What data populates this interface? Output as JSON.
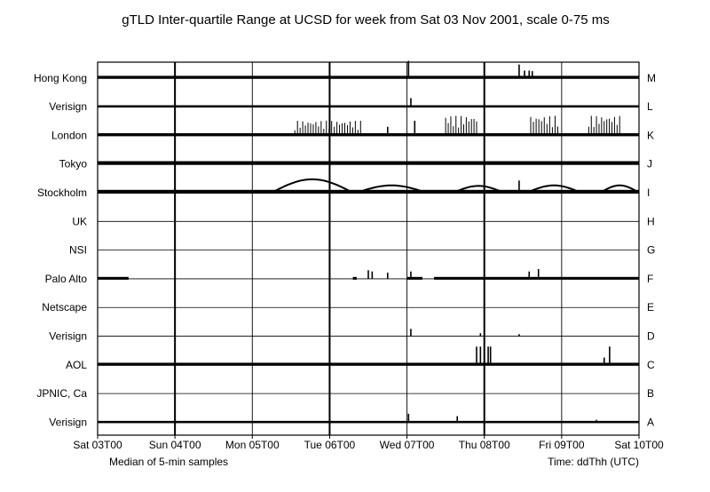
{
  "chart_data": {
    "type": "line",
    "title": "gTLD Inter-quartile Range at UCSD for week from Sat 03 Nov 2001, scale 0-75 ms",
    "xlabel": "Time: ddThh (UTC)",
    "footnote": "Median of 5-min samples",
    "x_ticks": [
      "Sat 03T00",
      "Sun 04T00",
      "Mon 05T00",
      "Tue 06T00",
      "Wed 07T00",
      "Thu 08T00",
      "Fri 09T00",
      "Sat 10T00"
    ],
    "x_range_days": [
      0,
      7
    ],
    "y_scale_ms": [
      0,
      75
    ],
    "series": [
      {
        "name": "Hong Kong",
        "letter": "M",
        "level": 0.05,
        "spikes": [
          [
            4.02,
            0.7
          ],
          [
            5.45,
            0.55
          ],
          [
            5.52,
            0.3
          ],
          [
            5.58,
            0.3
          ],
          [
            5.62,
            0.28
          ]
        ]
      },
      {
        "name": "Verisign",
        "letter": "L",
        "level": 0.02,
        "spikes": [
          [
            4.05,
            0.35
          ]
        ]
      },
      {
        "name": "London",
        "letter": "K",
        "level": 0.05,
        "bursts": [
          [
            2.55,
            3.4,
            0.6
          ],
          [
            4.5,
            4.9,
            0.8
          ],
          [
            5.6,
            5.95,
            0.8
          ],
          [
            6.35,
            6.75,
            0.8
          ]
        ],
        "spikes": [
          [
            4.1,
            0.6
          ],
          [
            3.75,
            0.35
          ]
        ]
      },
      {
        "name": "Tokyo",
        "letter": "J",
        "level": 0.08,
        "spikes": []
      },
      {
        "name": "Stockholm",
        "letter": "I",
        "level": 0.08,
        "humps": [
          [
            2.25,
            3.3,
            0.55
          ],
          [
            3.35,
            4.25,
            0.3
          ],
          [
            4.6,
            5.25,
            0.28
          ],
          [
            5.55,
            6.25,
            0.3
          ],
          [
            6.5,
            7.0,
            0.3
          ]
        ],
        "spikes": [
          [
            1.0,
            0.25
          ],
          [
            5.45,
            0.5
          ]
        ]
      },
      {
        "name": "UK",
        "letter": "H",
        "level": 0.0,
        "spikes": []
      },
      {
        "name": "NSI",
        "letter": "G",
        "level": 0.0,
        "spikes": []
      },
      {
        "name": "Palo Alto",
        "letter": "F",
        "level": 0.04,
        "segments": [
          [
            0.0,
            0.4
          ],
          [
            3.3,
            3.35
          ],
          [
            4.0,
            4.2
          ],
          [
            4.35,
            7.0
          ]
        ],
        "spikes": [
          [
            3.5,
            0.35
          ],
          [
            3.55,
            0.3
          ],
          [
            3.75,
            0.25
          ],
          [
            4.05,
            0.3
          ],
          [
            5.58,
            0.3
          ],
          [
            5.7,
            0.4
          ]
        ]
      },
      {
        "name": "Netscape",
        "letter": "E",
        "level": 0.0,
        "spikes": []
      },
      {
        "name": "Verisign",
        "letter": "D",
        "level": 0.0,
        "spikes": [
          [
            4.05,
            0.3
          ],
          [
            4.95,
            0.12
          ],
          [
            5.45,
            0.08
          ]
        ]
      },
      {
        "name": "AOL",
        "letter": "C",
        "level": 0.05,
        "spikes": [
          [
            4.9,
            0.75
          ],
          [
            4.95,
            0.75
          ],
          [
            5.05,
            0.75
          ],
          [
            5.08,
            0.75
          ],
          [
            6.55,
            0.3
          ],
          [
            6.62,
            0.75
          ]
        ]
      },
      {
        "name": "JPNIC, Ca",
        "letter": "B",
        "level": 0.0,
        "spikes": []
      },
      {
        "name": "Verisign",
        "letter": "A",
        "level": 0.02,
        "spikes": [
          [
            4.02,
            0.35
          ],
          [
            4.65,
            0.25
          ],
          [
            6.45,
            0.1
          ]
        ]
      }
    ]
  }
}
